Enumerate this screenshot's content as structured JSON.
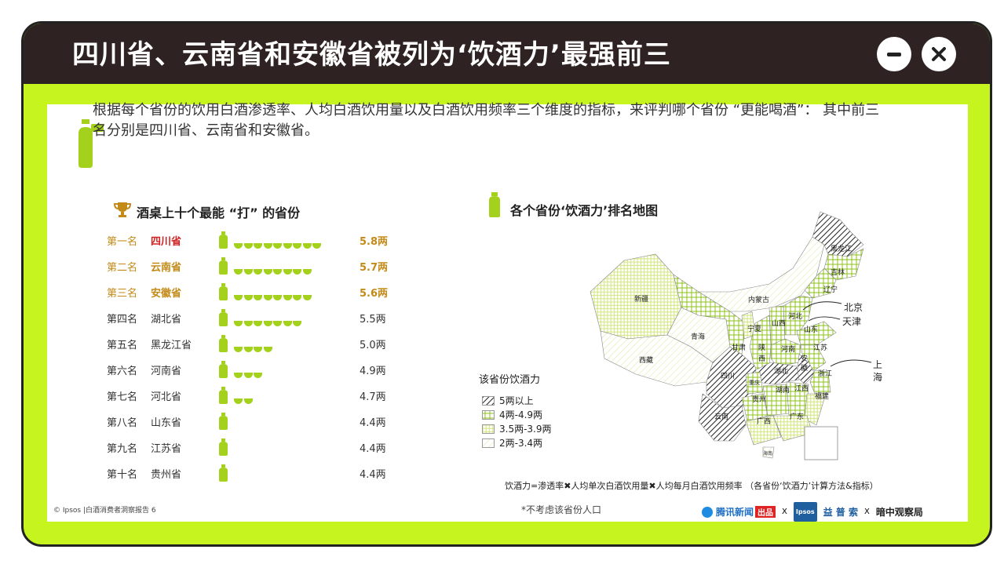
{
  "title": "四川省、云南省和安徽省被列为‘饮酒力’最强前三",
  "controls": {
    "minimize_icon": "minus-icon",
    "close_icon": "close-icon"
  },
  "intro": "根据每个省份的饮用白酒渗透率、人均白酒饮用量以及白酒饮用频率三个维度的指标，来评判哪个省份 “更能喝酒”： 其中前三名分别是四川省、云南省和安徽省。",
  "left_section_title": "酒桌上十个最能 “打” 的省份",
  "right_section_title": "各个省份‘饮酒力’排名地图",
  "colors": {
    "accent": "#c6f41e",
    "title_bar": "#2e2222",
    "gold": "#c38a17",
    "red": "#d32020",
    "cup": "#a4d21c"
  },
  "chart_data": [
    {
      "type": "bar",
      "title": "酒桌上十个最能 “打” 的省份",
      "unit": "两",
      "ranks": [
        "第一名",
        "第二名",
        "第三名",
        "第四名",
        "第五名",
        "第六名",
        "第七名",
        "第八名",
        "第九名",
        "第十名"
      ],
      "categories": [
        "四川省",
        "云南省",
        "安徽省",
        "湖北省",
        "黑龙江省",
        "河南省",
        "河北省",
        "山东省",
        "江苏省",
        "贵州省"
      ],
      "values": [
        5.8,
        5.7,
        5.6,
        5.5,
        5.0,
        4.9,
        4.7,
        4.4,
        4.4,
        4.4
      ],
      "value_labels": [
        "5.8两",
        "5.7两",
        "5.6两",
        "5.5两",
        "5.0两",
        "4.9两",
        "4.7两",
        "4.4两",
        "4.4两",
        "4.4两"
      ]
    },
    {
      "type": "map",
      "title": "各个省份‘饮酒力’排名地图",
      "legend_title": "该省份饮酒力",
      "legend": [
        "5两以上",
        "4两-4.9两",
        "3.5两-3.9两",
        "2两-3.4两"
      ],
      "regions": [
        {
          "name": "黑龙江",
          "tier": "5两以上"
        },
        {
          "name": "吉林",
          "tier": "4两-4.9两"
        },
        {
          "name": "辽宁",
          "tier": "4两-4.9两"
        },
        {
          "name": "内蒙古",
          "tier": "2两-3.4两"
        },
        {
          "name": "新疆",
          "tier": "3.5两-3.9两"
        },
        {
          "name": "北京",
          "tier": "3.5两-3.9两"
        },
        {
          "name": "天津",
          "tier": "3.5两-3.9两"
        },
        {
          "name": "河北",
          "tier": "4两-4.9两"
        },
        {
          "name": "山西",
          "tier": "4两-4.9两"
        },
        {
          "name": "山东",
          "tier": "4两-4.9两"
        },
        {
          "name": "宁夏",
          "tier": "3.5两-3.9两"
        },
        {
          "name": "青海",
          "tier": "2两-3.4两"
        },
        {
          "name": "甘肃",
          "tier": "4两-4.9两"
        },
        {
          "name": "陕西",
          "tier": "4两-4.9两"
        },
        {
          "name": "河南",
          "tier": "4两-4.9两"
        },
        {
          "name": "江苏",
          "tier": "4两-4.9两"
        },
        {
          "name": "安徽",
          "tier": "5两以上"
        },
        {
          "name": "湖北",
          "tier": "5两以上"
        },
        {
          "name": "西藏",
          "tier": "2两-3.4两"
        },
        {
          "name": "四川",
          "tier": "5两以上"
        },
        {
          "name": "重庆",
          "tier": "4两-4.9两"
        },
        {
          "name": "浙江",
          "tier": "4两-4.9两"
        },
        {
          "name": "上海",
          "tier": "3.5两-3.9两"
        },
        {
          "name": "湖南",
          "tier": "4两-4.9两"
        },
        {
          "name": "江西",
          "tier": "4两-4.9两"
        },
        {
          "name": "贵州",
          "tier": "4两-4.9两"
        },
        {
          "name": "福建",
          "tier": "3.5两-3.9两"
        },
        {
          "name": "云南",
          "tier": "5两以上"
        },
        {
          "name": "广西",
          "tier": "3.5两-3.9两"
        },
        {
          "name": "广东",
          "tier": "3.5两-3.9两"
        },
        {
          "name": "海南",
          "tier": "2两-3.4两"
        }
      ]
    }
  ],
  "map_labels": {
    "heilongjiang": "黑龙江",
    "jilin": "吉林",
    "liaoning": "辽宁",
    "neimenggu": "内蒙古",
    "xinjiang": "新疆",
    "beijing": "北京",
    "tianjin": "天津",
    "hebei": "河北",
    "shanxi": "山西",
    "shandong": "山东",
    "ningxia": "宁夏",
    "qinghai": "青海",
    "gansu": "甘肃",
    "shaanxi_1": "陕",
    "shaanxi_2": "西",
    "henan": "河南",
    "jiangsu": "江苏",
    "anhui_1": "安",
    "anhui_2": "徽",
    "hubei": "湖北",
    "xizang": "西藏",
    "sichuan": "四川",
    "chongqing": "重庆",
    "zhejiang": "浙江",
    "shanghai_1": "上",
    "shanghai_2": "海",
    "hunan": "湖南",
    "jiangxi": "江西",
    "guizhou": "贵州",
    "fujian": "福建",
    "yunnan": "云南",
    "guangxi": "广西",
    "guangdong": "广东",
    "hainan": "海南"
  },
  "formula": "饮酒力=渗透率✖人均单次白酒饮用量✖人均每月白酒饮用频率 （各省份‘饮酒力’计算方法&指标）",
  "note": "*不考虑该省份人口",
  "footer": "© Ipsos |白酒消费者洞察报告  6",
  "logos": {
    "tencent": "腾讯新闻",
    "tencent_badge": "出品",
    "ipsos": "Ipsos",
    "yipusuo": "益 普 索",
    "cross": "X",
    "last": "暗中观察局"
  }
}
